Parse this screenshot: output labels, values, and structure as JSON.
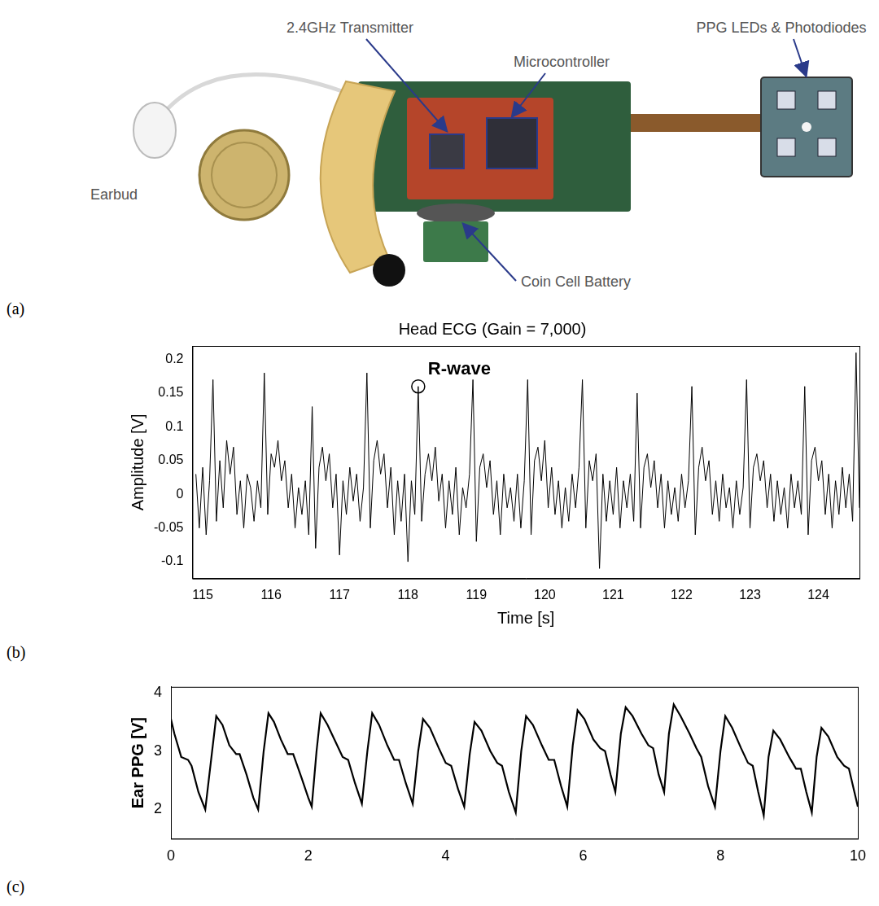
{
  "panel_labels": [
    "(a)",
    "(b)",
    "(c)"
  ],
  "device": {
    "labels": [
      "2.4GHz Transmitter",
      "Microcontroller",
      "PPG LEDs & Photodiodes",
      "Earbud",
      "Coin Cell Battery"
    ]
  },
  "chart_data": [
    {
      "type": "line",
      "title": "Head ECG (Gain = 7,000)",
      "x_label": "Time [s]",
      "y_label": "Amplitude [V]",
      "x": [
        114.9,
        114.95,
        115,
        115.05,
        115.1,
        115.15,
        115.2,
        115.25,
        115.3,
        115.35,
        115.4,
        115.45,
        115.5,
        115.55,
        115.6,
        115.65,
        115.7,
        115.75,
        115.8,
        115.85,
        115.9,
        115.95,
        116,
        116.05,
        116.1,
        116.15,
        116.2,
        116.25,
        116.3,
        116.35,
        116.4,
        116.45,
        116.5,
        116.55,
        116.6,
        116.65,
        116.7,
        116.75,
        116.8,
        116.85,
        116.9,
        116.95,
        117,
        117.05,
        117.1,
        117.15,
        117.2,
        117.25,
        117.3,
        117.35,
        117.4,
        117.45,
        117.5,
        117.55,
        117.6,
        117.65,
        117.7,
        117.75,
        117.8,
        117.85,
        117.9,
        117.95,
        118,
        118.05,
        118.1,
        118.15,
        118.2,
        118.25,
        118.3,
        118.35,
        118.4,
        118.45,
        118.5,
        118.55,
        118.6,
        118.65,
        118.7,
        118.75,
        118.8,
        118.85,
        118.9,
        118.95,
        119,
        119.05,
        119.1,
        119.15,
        119.2,
        119.25,
        119.3,
        119.35,
        119.4,
        119.45,
        119.5,
        119.55,
        119.6,
        119.65,
        119.7,
        119.75,
        119.8,
        119.85,
        119.9,
        119.95,
        120,
        120.05,
        120.1,
        120.15,
        120.2,
        120.25,
        120.3,
        120.35,
        120.4,
        120.45,
        120.5,
        120.55,
        120.6,
        120.65,
        120.7,
        120.75,
        120.8,
        120.85,
        120.9,
        120.95,
        121,
        121.05,
        121.1,
        121.15,
        121.2,
        121.25,
        121.3,
        121.35,
        121.4,
        121.45,
        121.5,
        121.55,
        121.6,
        121.65,
        121.7,
        121.75,
        121.8,
        121.85,
        121.9,
        121.95,
        122,
        122.05,
        122.1,
        122.15,
        122.2,
        122.25,
        122.3,
        122.35,
        122.4,
        122.45,
        122.5,
        122.55,
        122.6,
        122.65,
        122.7,
        122.75,
        122.8,
        122.85,
        122.9,
        122.95,
        123,
        123.05,
        123.1,
        123.15,
        123.2,
        123.25,
        123.3,
        123.35,
        123.4,
        123.45,
        123.5,
        123.55,
        123.6,
        123.65,
        123.7,
        123.75,
        123.8,
        123.85,
        123.9,
        123.95,
        124,
        124.05,
        124.1,
        124.15,
        124.2,
        124.25,
        124.3,
        124.35,
        124.4,
        124.45,
        124.5,
        124.55,
        124.6
      ],
      "values": [
        0.03,
        -0.05,
        0.04,
        -0.06,
        0.02,
        0.17,
        -0.04,
        0.05,
        -0.02,
        0.08,
        0.03,
        0.07,
        -0.03,
        0.02,
        -0.05,
        0.03,
        0.01,
        -0.04,
        0.02,
        -0.02,
        0.18,
        -0.03,
        0.06,
        0.04,
        0.08,
        0.02,
        0.05,
        -0.02,
        0.03,
        -0.05,
        0.01,
        -0.03,
        0.02,
        -0.06,
        0.13,
        -0.08,
        0.04,
        0.07,
        0.02,
        0.06,
        -0.02,
        0.03,
        -0.09,
        0.02,
        -0.03,
        0.04,
        -0.01,
        0.03,
        -0.04,
        0.01,
        0.18,
        -0.05,
        0.05,
        0.08,
        0.03,
        0.06,
        -0.02,
        0.04,
        -0.06,
        0.02,
        -0.04,
        0.03,
        -0.1,
        0.02,
        -0.03,
        0.16,
        -0.04,
        0.03,
        0.06,
        0.02,
        0.07,
        -0.01,
        0.03,
        -0.05,
        0.02,
        -0.03,
        0.04,
        -0.06,
        0.01,
        -0.02,
        0.03,
        0.17,
        -0.07,
        0.04,
        0.06,
        0.01,
        0.05,
        -0.03,
        0.02,
        -0.06,
        0.03,
        -0.02,
        0.01,
        -0.04,
        0.03,
        -0.05,
        0.02,
        0.17,
        -0.06,
        0.05,
        0.07,
        0.02,
        0.08,
        -0.02,
        0.04,
        -0.03,
        0.02,
        -0.05,
        0.01,
        -0.04,
        0.03,
        -0.02,
        0.04,
        0.17,
        -0.05,
        0.05,
        0.02,
        0.06,
        -0.11,
        0.03,
        -0.04,
        0.02,
        -0.03,
        0.04,
        -0.05,
        0.02,
        -0.02,
        0.03,
        -0.04,
        0.15,
        -0.05,
        0.04,
        0.06,
        0.01,
        0.05,
        -0.02,
        0.03,
        -0.05,
        0.02,
        -0.03,
        0.01,
        -0.04,
        0.03,
        -0.02,
        0.02,
        0.16,
        -0.06,
        0.04,
        0.07,
        0.02,
        0.05,
        -0.03,
        0.02,
        -0.04,
        0.03,
        -0.02,
        0.01,
        -0.05,
        0.02,
        -0.03,
        0.01,
        0.17,
        -0.05,
        0.04,
        0.06,
        0.02,
        0.05,
        -0.02,
        0.03,
        -0.04,
        0.02,
        -0.03,
        0.01,
        -0.05,
        0.03,
        -0.02,
        0.02,
        -0.03,
        0.16,
        -0.06,
        0.05,
        0.07,
        0.02,
        0.05,
        -0.03,
        0.03,
        -0.05,
        0.02,
        -0.03,
        0.04,
        -0.02,
        0.03,
        -0.04,
        0.21,
        -0.02
      ],
      "color": "#000000",
      "xlim": [
        114.85,
        124.6
      ],
      "xticks": [
        115,
        116,
        117,
        118,
        119,
        120,
        121,
        122,
        123,
        124
      ],
      "ylim": [
        -0.125,
        0.22
      ],
      "yticks": [
        -0.1,
        -0.05,
        0,
        0.05,
        0.1,
        0.15,
        0.2
      ],
      "grid": false,
      "annotations": [
        {
          "text": "R-wave",
          "x": 118.15,
          "y": 0.16
        }
      ]
    },
    {
      "type": "line",
      "y_label": "Ear PPG [V]",
      "x": [
        0,
        0.05,
        0.15,
        0.25,
        0.3,
        0.4,
        0.5,
        0.6,
        0.66,
        0.75,
        0.85,
        0.95,
        1.0,
        1.1,
        1.2,
        1.27,
        1.35,
        1.42,
        1.5,
        1.6,
        1.7,
        1.78,
        1.9,
        2.0,
        2.05,
        2.12,
        2.18,
        2.28,
        2.4,
        2.5,
        2.58,
        2.68,
        2.78,
        2.86,
        2.93,
        3.03,
        3.15,
        3.25,
        3.32,
        3.42,
        3.52,
        3.6,
        3.67,
        3.77,
        3.9,
        4.0,
        4.08,
        4.18,
        4.27,
        4.35,
        4.42,
        4.52,
        4.65,
        4.75,
        4.82,
        4.92,
        5.02,
        5.1,
        5.17,
        5.27,
        5.4,
        5.5,
        5.58,
        5.68,
        5.77,
        5.85,
        5.92,
        6.02,
        6.15,
        6.25,
        6.32,
        6.4,
        6.47,
        6.55,
        6.62,
        6.72,
        6.85,
        6.95,
        7.02,
        7.1,
        7.18,
        7.25,
        7.32,
        7.42,
        7.55,
        7.65,
        7.72,
        7.82,
        7.92,
        8.0,
        8.07,
        8.17,
        8.3,
        8.4,
        8.47,
        8.55,
        8.63,
        8.7,
        8.77,
        8.87,
        9.0,
        9.1,
        9.17,
        9.25,
        9.33,
        9.4,
        9.47,
        9.57,
        9.7,
        9.8,
        9.87,
        9.95,
        10
      ],
      "values": [
        3.55,
        3.3,
        2.9,
        2.85,
        2.75,
        2.3,
        2.0,
        3.0,
        3.6,
        3.45,
        3.1,
        2.95,
        2.95,
        2.6,
        2.2,
        2.0,
        3.0,
        3.65,
        3.5,
        3.2,
        2.95,
        2.95,
        2.55,
        2.2,
        2.05,
        3.0,
        3.65,
        3.45,
        3.15,
        2.9,
        2.85,
        2.45,
        2.1,
        3.0,
        3.65,
        3.45,
        3.1,
        2.85,
        2.85,
        2.45,
        2.1,
        3.0,
        3.55,
        3.4,
        3.05,
        2.8,
        2.75,
        2.35,
        2.05,
        2.95,
        3.5,
        3.35,
        3.0,
        2.8,
        2.75,
        2.3,
        1.95,
        3.0,
        3.6,
        3.45,
        3.1,
        2.85,
        2.85,
        2.4,
        2.05,
        3.1,
        3.7,
        3.55,
        3.2,
        3.05,
        3.0,
        2.6,
        2.3,
        3.3,
        3.75,
        3.6,
        3.3,
        3.1,
        3.05,
        2.6,
        2.3,
        3.3,
        3.8,
        3.6,
        3.3,
        3.05,
        2.9,
        2.4,
        2.05,
        3.0,
        3.6,
        3.4,
        3.05,
        2.8,
        2.75,
        2.3,
        1.9,
        2.9,
        3.35,
        3.2,
        2.9,
        2.7,
        2.7,
        2.3,
        1.95,
        2.9,
        3.4,
        3.25,
        2.9,
        2.75,
        2.7,
        2.3,
        2.05
      ],
      "color": "#000000",
      "xlim": [
        0,
        10
      ],
      "xticks": [
        0,
        2,
        4,
        6,
        8,
        10
      ],
      "ylim": [
        1.5,
        4.1
      ],
      "yticks": [
        2,
        3,
        4
      ],
      "grid": false
    }
  ]
}
